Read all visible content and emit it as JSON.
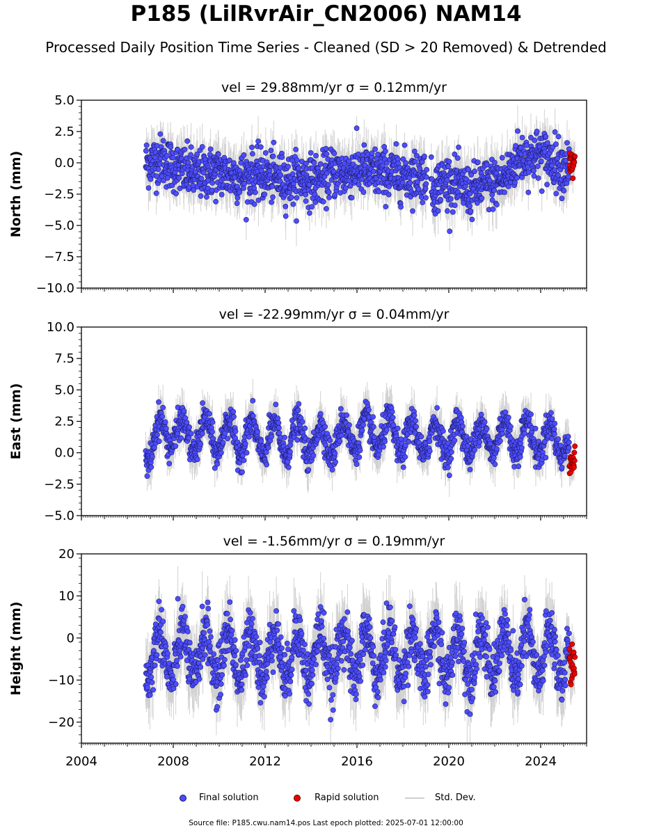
{
  "title": "P185 (LilRvrAir_CN2006) NAM14",
  "subtitle": "Processed Daily Position Time Series - Cleaned (SD > 20 Removed) & Detrended",
  "footer": "Source file: P185.cwu.nam14.pos  Last epoch plotted: 2025-07-01 12:00:00",
  "legend": {
    "final_label": "Final solution",
    "rapid_label": "Rapid solution",
    "sd_label": "Std. Dev."
  },
  "colors": {
    "final": "#4d4dff",
    "final_edge": "#1a1a66",
    "rapid": "#ee0000",
    "rapid_edge": "#550000",
    "std_dev": "#7a7a7a"
  },
  "chart_data": [
    {
      "type": "scatter",
      "title": "vel = 29.88mm/yr   σ = 0.12mm/yr",
      "ylabel": "North (mm)",
      "xlim": [
        2004,
        2026
      ],
      "ylim": [
        -10,
        5
      ],
      "yticks": [
        5.0,
        2.5,
        0.0,
        -2.5,
        -5.0,
        -7.5,
        -10.0
      ],
      "ytick_labels": [
        "5.0",
        "2.5",
        "0.0",
        "−2.5",
        "−5.0",
        "−7.5",
        "−10.0"
      ],
      "data_range": [
        2006.8,
        2025.25
      ],
      "rapid_range": [
        2025.25,
        2025.5
      ],
      "std_dev_halfwidth": 1.5,
      "series": [
        {
          "role": "final",
          "name": "Final solution",
          "x": [
            2006.8,
            2007.5,
            2008.0,
            2008.5,
            2009.0,
            2009.5,
            2010.0,
            2010.5,
            2011.0,
            2011.5,
            2012.0,
            2012.5,
            2013.0,
            2013.5,
            2014.0,
            2014.5,
            2015.0,
            2015.5,
            2016.0,
            2016.5,
            2017.0,
            2017.5,
            2018.0,
            2018.5,
            2019.0,
            2019.3,
            2019.7,
            2020.0,
            2020.5,
            2021.0,
            2021.5,
            2022.0,
            2022.5,
            2023.0,
            2023.5,
            2024.0,
            2024.5,
            2025.0,
            2025.25
          ],
          "y": [
            0.0,
            0.3,
            -0.3,
            -0.7,
            -1.0,
            -0.8,
            -0.8,
            -1.0,
            -1.1,
            -1.0,
            -1.0,
            -1.2,
            -1.4,
            -1.2,
            -1.4,
            -1.3,
            -0.7,
            -0.9,
            -0.5,
            -0.8,
            -0.8,
            -0.9,
            -1.0,
            -1.0,
            -0.9,
            -2.2,
            -1.5,
            -1.4,
            -2.0,
            -2.3,
            -1.7,
            -1.6,
            -1.2,
            0.4,
            0.5,
            0.7,
            0.2,
            -0.3,
            -0.2
          ]
        },
        {
          "role": "rapid",
          "name": "Rapid solution",
          "x": [
            2025.25,
            2025.5
          ],
          "y": [
            -0.4,
            -0.3
          ]
        }
      ],
      "noise_sd": 1.0
    },
    {
      "type": "scatter",
      "title": "vel = -22.99mm/yr   σ = 0.04mm/yr",
      "ylabel": "East (mm)",
      "xlim": [
        2004,
        2026
      ],
      "ylim": [
        -5,
        10
      ],
      "yticks": [
        10.0,
        7.5,
        5.0,
        2.5,
        0.0,
        -2.5,
        -5.0
      ],
      "ytick_labels": [
        "10.0",
        "7.5",
        "5.0",
        "2.5",
        "0.0",
        "−2.5",
        "−5.0"
      ],
      "data_range": [
        2006.8,
        2025.25
      ],
      "rapid_range": [
        2025.25,
        2025.5
      ],
      "std_dev_halfwidth": 1.3,
      "series": [
        {
          "role": "final",
          "name": "Final solution",
          "x": [
            2006.8,
            2007.5,
            2008.0,
            2008.5,
            2009.0,
            2009.5,
            2010.0,
            2010.5,
            2011.0,
            2011.5,
            2012.0,
            2012.5,
            2013.0,
            2013.5,
            2014.0,
            2014.5,
            2015.0,
            2015.5,
            2016.0,
            2016.5,
            2017.0,
            2017.5,
            2018.0,
            2018.5,
            2019.0,
            2019.5,
            2020.0,
            2020.5,
            2021.0,
            2021.5,
            2022.0,
            2022.5,
            2023.0,
            2023.5,
            2024.0,
            2024.5,
            2025.0,
            2025.25
          ],
          "y": [
            0.2,
            1.6,
            1.8,
            1.2,
            1.3,
            1.5,
            1.2,
            1.4,
            1.1,
            1.2,
            1.0,
            1.1,
            1.1,
            1.2,
            0.9,
            1.0,
            1.0,
            1.3,
            1.6,
            1.5,
            1.6,
            1.4,
            1.2,
            1.2,
            1.0,
            1.2,
            1.1,
            1.3,
            1.0,
            1.1,
            1.2,
            1.4,
            1.3,
            1.2,
            1.1,
            1.0,
            1.0,
            0.3
          ]
        },
        {
          "role": "rapid",
          "name": "Rapid solution",
          "x": [
            2025.25,
            2025.5
          ],
          "y": [
            -0.6,
            -0.8
          ]
        }
      ],
      "seasonal_amplitude": 1.3,
      "noise_sd": 0.6
    },
    {
      "type": "scatter",
      "title": "vel = -1.56mm/yr   σ = 0.19mm/yr",
      "ylabel": "Height (mm)",
      "xlim": [
        2004,
        2026
      ],
      "ylim": [
        -25,
        20
      ],
      "yticks": [
        20,
        10,
        0,
        -10,
        -20
      ],
      "ytick_labels": [
        "20",
        "10",
        "0",
        "−10",
        "−20"
      ],
      "xticks": [
        2004,
        2008,
        2012,
        2016,
        2020,
        2024
      ],
      "xtick_labels": [
        "2004",
        "2008",
        "2012",
        "2016",
        "2020",
        "2024"
      ],
      "data_range": [
        2006.8,
        2025.25
      ],
      "rapid_range": [
        2025.25,
        2025.5
      ],
      "std_dev_halfwidth": 6.0,
      "series": [
        {
          "role": "final",
          "name": "Final solution",
          "x": [
            2006.8,
            2008.0,
            2010.0,
            2012.0,
            2014.0,
            2016.0,
            2018.0,
            2020.0,
            2022.0,
            2024.0,
            2025.25
          ],
          "y": [
            -4.0,
            -4.0,
            -4.0,
            -4.0,
            -4.0,
            -4.0,
            -4.0,
            -4.0,
            -4.0,
            -4.0,
            -4.0
          ]
        },
        {
          "role": "rapid",
          "name": "Rapid solution",
          "x": [
            2025.25,
            2025.5
          ],
          "y": [
            -6.0,
            -8.0
          ]
        }
      ],
      "seasonal_amplitude": 6.0,
      "noise_sd": 3.2
    }
  ]
}
